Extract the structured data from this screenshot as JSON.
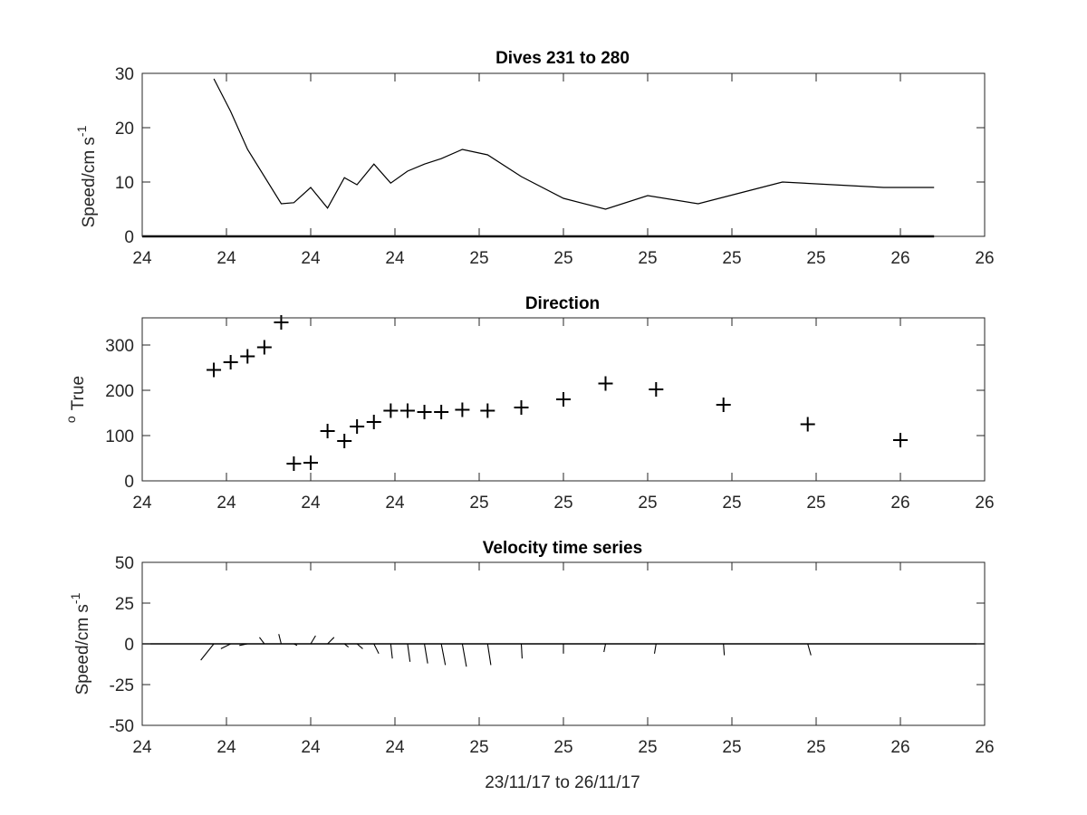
{
  "figure_xlabel": "23/11/17 to 26/11/17",
  "chart_data": [
    {
      "type": "line",
      "title": "Dives 231 to 280",
      "xlabel": "",
      "ylabel": "Speed/cm s",
      "ylabel_sup": "-1",
      "xlim": [
        0,
        100
      ],
      "xticks": [
        0,
        10,
        20,
        30,
        40,
        50,
        60,
        70,
        80,
        90,
        100
      ],
      "xticklabels": [
        "24",
        "24",
        "24",
        "24",
        "25",
        "25",
        "25",
        "25",
        "25",
        "26",
        "26"
      ],
      "ylim": [
        0,
        30
      ],
      "yticks": [
        0,
        10,
        20,
        30
      ],
      "yticklabels": [
        "0",
        "10",
        "20",
        "30"
      ],
      "grid": false,
      "series": [
        {
          "x": [
            8.5,
            10.5,
            12.5,
            16.5,
            18,
            20,
            22,
            24,
            25.5,
            27.5,
            29.5,
            31.5,
            33.5,
            35.5,
            38,
            41,
            45,
            50,
            55,
            60,
            66,
            71,
            76,
            82,
            88,
            94,
            90
          ],
          "y": [
            29,
            23,
            16,
            6,
            6.2,
            9,
            5.2,
            10.8,
            9.5,
            13.3,
            9.8,
            12,
            13.3,
            14.3,
            16,
            15,
            11,
            7,
            5,
            7.5,
            6,
            8,
            10,
            9.5,
            9,
            9,
            9
          ]
        }
      ]
    },
    {
      "type": "scatter",
      "title": "Direction",
      "xlabel": "",
      "ylabel": "True",
      "ylabel_sup": "o",
      "xlim": [
        0,
        100
      ],
      "xticks": [
        0,
        10,
        20,
        30,
        40,
        50,
        60,
        70,
        80,
        90,
        100
      ],
      "xticklabels": [
        "24",
        "24",
        "24",
        "24",
        "25",
        "25",
        "25",
        "25",
        "25",
        "26",
        "26"
      ],
      "ylim": [
        0,
        360
      ],
      "yticks": [
        0,
        100,
        200,
        300
      ],
      "yticklabels": [
        "0",
        "100",
        "200",
        "300"
      ],
      "grid": false,
      "marker": "+",
      "series": [
        {
          "x": [
            8.5,
            10.5,
            12.5,
            14.5,
            16.5,
            18,
            20,
            22,
            24,
            25.5,
            27.5,
            29.5,
            31.5,
            33.5,
            35.5,
            38,
            41,
            45,
            50,
            55,
            61,
            69,
            79,
            90
          ],
          "y": [
            245,
            262,
            275,
            295,
            350,
            38,
            40,
            110,
            88,
            120,
            130,
            155,
            155,
            152,
            152,
            157,
            155,
            162,
            180,
            215,
            202,
            168,
            125,
            90
          ]
        }
      ]
    },
    {
      "type": "quiver",
      "title": "Velocity time series",
      "xlabel": "",
      "ylabel": "Speed/cm s",
      "ylabel_sup": "-1",
      "xlim": [
        0,
        100
      ],
      "xticks": [
        0,
        10,
        20,
        30,
        40,
        50,
        60,
        70,
        80,
        90,
        100
      ],
      "xticklabels": [
        "24",
        "24",
        "24",
        "24",
        "25",
        "25",
        "25",
        "25",
        "25",
        "26",
        "26"
      ],
      "ylim": [
        -50,
        50
      ],
      "yticks": [
        -50,
        -25,
        0,
        25,
        50
      ],
      "yticklabels": [
        "-50",
        "-25",
        "0",
        "25",
        "50"
      ],
      "grid": false,
      "baseline": 0,
      "sticks": [
        {
          "x": 8.5,
          "u": -8,
          "v": -10
        },
        {
          "x": 10.5,
          "u": -6,
          "v": -3
        },
        {
          "x": 12.5,
          "u": -5,
          "v": -1
        },
        {
          "x": 14.5,
          "u": -3,
          "v": 4
        },
        {
          "x": 16.5,
          "u": -1.5,
          "v": 6
        },
        {
          "x": 18,
          "u": 2,
          "v": -1
        },
        {
          "x": 20,
          "u": 3,
          "v": 5
        },
        {
          "x": 22,
          "u": 4,
          "v": 4
        },
        {
          "x": 24,
          "u": 2.5,
          "v": -2
        },
        {
          "x": 25.5,
          "u": 3.5,
          "v": -3
        },
        {
          "x": 27.5,
          "u": 3,
          "v": -6
        },
        {
          "x": 29.5,
          "u": 1,
          "v": -9
        },
        {
          "x": 31.5,
          "u": 1.5,
          "v": -11
        },
        {
          "x": 33.5,
          "u": 2,
          "v": -12
        },
        {
          "x": 35.5,
          "u": 2.5,
          "v": -13
        },
        {
          "x": 38,
          "u": 2.5,
          "v": -14
        },
        {
          "x": 41,
          "u": 2,
          "v": -13
        },
        {
          "x": 45,
          "u": 0.5,
          "v": -9
        },
        {
          "x": 50,
          "u": 0,
          "v": -6
        },
        {
          "x": 55,
          "u": -1,
          "v": -5
        },
        {
          "x": 61,
          "u": -1,
          "v": -6
        },
        {
          "x": 69,
          "u": 0.5,
          "v": -7
        },
        {
          "x": 79,
          "u": 2,
          "v": -7
        },
        {
          "x": 90,
          "u": 0,
          "v": 0
        }
      ]
    }
  ]
}
